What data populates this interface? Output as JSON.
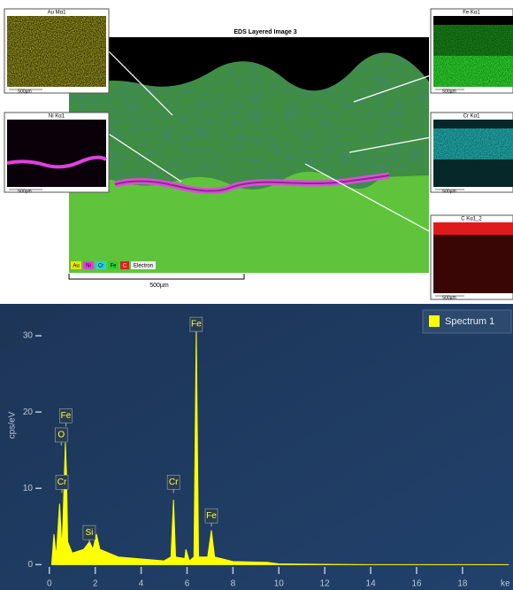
{
  "layered_image": {
    "title": "EDS Layered Image 3",
    "maps": [
      {
        "label": "Au Mα1",
        "scale": "500µm"
      },
      {
        "label": "Ni Kα1",
        "scale": "500µm"
      },
      {
        "label": "Fe Kα1",
        "scale": "500µm"
      },
      {
        "label": "Cr Kα1",
        "scale": "500µm"
      },
      {
        "label": "C Kα1_2",
        "scale": "500µm"
      }
    ],
    "legend": [
      "Au",
      "Ni",
      "Cr",
      "Fe",
      "C",
      "Electron"
    ],
    "scale_bar": "500µm"
  },
  "chart_data": {
    "type": "area",
    "xlabel": "ke",
    "ylabel": "cps/eV",
    "x": [
      0.1,
      0.2,
      0.3,
      0.45,
      0.55,
      0.6,
      0.7,
      0.75,
      0.8,
      1.0,
      1.5,
      1.75,
      1.9,
      2.05,
      2.2,
      3,
      5,
      5.3,
      5.41,
      5.5,
      5.9,
      5.95,
      6.1,
      6.3,
      6.4,
      6.5,
      6.9,
      7.06,
      7.2,
      8,
      9.5,
      10,
      14,
      20
    ],
    "series": [
      {
        "name": "Spectrum 1",
        "color": "#ffff00",
        "values": [
          0,
          4,
          1,
          8,
          2,
          6,
          16,
          12,
          3,
          1.5,
          2,
          3,
          2,
          4,
          2,
          1,
          0.5,
          1,
          8.5,
          1,
          0.8,
          2,
          0.5,
          1,
          31,
          1,
          1,
          4.5,
          1,
          0.4,
          0.3,
          0.1,
          0,
          0
        ]
      }
    ],
    "xlim": [
      -0.8,
      20.2
    ],
    "ylim": [
      -1.7,
      33.6
    ],
    "xticks": [
      0,
      2,
      4,
      6,
      8,
      10,
      12,
      14,
      16,
      18
    ],
    "yticks": [
      0,
      10,
      20,
      30
    ],
    "legend": "upper right",
    "annotations": [
      {
        "text": "Fe",
        "x": 6.4,
        "y": 31.5
      },
      {
        "text": "Fe",
        "x": 0.72,
        "y": 19.5
      },
      {
        "text": "O",
        "x": 0.52,
        "y": 17
      },
      {
        "text": "Cr",
        "x": 0.55,
        "y": 10.8
      },
      {
        "text": "Cr",
        "x": 5.41,
        "y": 10.8
      },
      {
        "text": "Fe",
        "x": 7.06,
        "y": 6.4
      },
      {
        "text": "Si",
        "x": 1.74,
        "y": 4.2
      }
    ]
  }
}
